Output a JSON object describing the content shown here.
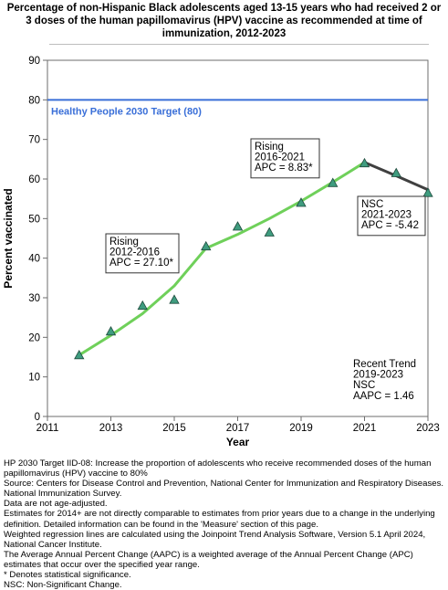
{
  "title": "Percentage of non-Hispanic Black adolescents aged 13-15 years who had received 2 or 3 doses of the human papillomavirus (HPV) vaccine as recommended at time of immunization, 2012-2023",
  "chart_data": {
    "type": "scatter",
    "xlabel": "Year",
    "ylabel": "Percent vaccinated",
    "xlim": [
      2011,
      2023
    ],
    "ylim": [
      0,
      90
    ],
    "x_ticks": [
      2011,
      2013,
      2015,
      2017,
      2019,
      2021,
      2023
    ],
    "y_ticks": [
      0,
      10,
      20,
      30,
      40,
      50,
      60,
      70,
      80,
      90
    ],
    "grid": false,
    "colors": {
      "target": "#3a6fd8",
      "rising_line": "#6fd05a",
      "nsc_line": "#404040",
      "marker_fill": "#3f9c7f",
      "marker_stroke": "#1e4a3c"
    },
    "target": {
      "value": 80,
      "label": "Healthy People 2030 Target (80)"
    },
    "observed": {
      "x": [
        2012,
        2013,
        2014,
        2015,
        2016,
        2017,
        2018,
        2019,
        2020,
        2021,
        2022,
        2023
      ],
      "y": [
        15.5,
        21.5,
        28.0,
        29.5,
        43.0,
        48.0,
        46.5,
        54.0,
        59.0,
        64.0,
        61.5,
        56.5
      ]
    },
    "segments": [
      {
        "x": [
          2012,
          2013,
          2014,
          2015,
          2016
        ],
        "y": [
          15.5,
          20.5,
          26.0,
          33.0,
          42.5
        ],
        "style": "rising"
      },
      {
        "x": [
          2016,
          2017,
          2018,
          2019,
          2020,
          2021
        ],
        "y": [
          42.5,
          46.0,
          50.0,
          54.4,
          59.2,
          64.2
        ],
        "style": "rising"
      },
      {
        "x": [
          2021,
          2022,
          2023
        ],
        "y": [
          64.2,
          60.8,
          57.3
        ],
        "style": "nsc"
      }
    ],
    "annotations": [
      {
        "lines": [
          "Rising",
          "2012-2016",
          "APC = 27.10*"
        ]
      },
      {
        "lines": [
          "Rising",
          "2016-2021",
          "APC =  8.83*"
        ]
      },
      {
        "lines": [
          "NSC",
          "2021-2023",
          "APC = -5.42"
        ]
      },
      {
        "lines": [
          "Recent Trend",
          "2019-2023",
          "NSC",
          "AAPC =  1.46"
        ]
      }
    ]
  },
  "footnotes": [
    "HP 2030 Target IID-08:  Increase the proportion of adolescents who receive recommended doses of the human papillomavirus (HPV) vaccine to 80%",
    "Source: Centers for Disease Control and Prevention, National Center for Immunization and Respiratory Diseases. National Immunization Survey.",
    "Data are not age-adjusted.",
    "Estimates for 2014+ are not directly comparable to estimates from prior years due to a change in the underlying definition. Detailed information can be found in the 'Measure' section of this page.",
    "Weighted regression lines are calculated using the Joinpoint Trend Analysis Software, Version 5.1 April 2024, National Cancer Institute.",
    "The Average Annual Percent Change (AAPC) is a weighted average of the Annual Percent Change (APC) estimates that occur over the specified year range.",
    "* Denotes statistical significance.",
    "NSC: Non-Significant Change."
  ]
}
